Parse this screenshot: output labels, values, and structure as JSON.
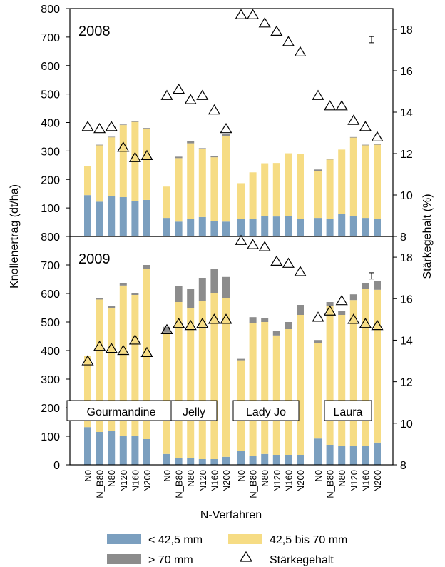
{
  "chart_data": {
    "type": "bar",
    "stacked": true,
    "y_label": "Knollenertrag (dt/ha)",
    "y2_label": "Stärkegehalt (%)",
    "x_label": "N-Verfahren",
    "ylim": [
      0,
      800
    ],
    "y2lim": [
      8,
      19
    ],
    "y_ticks": [
      "0",
      "100",
      "200",
      "300",
      "400",
      "500",
      "600",
      "700",
      "800"
    ],
    "y2_ticks": [
      "8",
      "10",
      "12",
      "14",
      "16",
      "18"
    ],
    "categories": [
      "N0",
      "N_B80",
      "N80",
      "N120",
      "N160",
      "N200"
    ],
    "varieties": [
      "Gourmandine",
      "Jelly",
      "Lady Jo",
      "Laura"
    ],
    "legend": {
      "small": "< 42,5 mm",
      "medium": "42,5 bis 70 mm",
      "large": "> 70 mm",
      "starch": "Stärkegehalt"
    },
    "colors": {
      "small": "#7b9fbf",
      "medium": "#f6dc84",
      "large": "#8c8c8c"
    },
    "panels": [
      {
        "year": "2008",
        "error_bar": {
          "value": 17.5,
          "half": 0.15
        },
        "groups": [
          {
            "small": [
              145,
              122,
              142,
              138,
              125,
              128
            ],
            "medium": [
              102,
              198,
              206,
              253,
              277,
              251
            ],
            "large": [
              0,
              2,
              2,
              2,
              2,
              2
            ],
            "starch": [
              13.3,
              13.2,
              13.3,
              12.3,
              11.8,
              11.9
            ]
          },
          {
            "small": [
              65,
              52,
              62,
              68,
              55,
              52
            ],
            "medium": [
              110,
              223,
              265,
              238,
              223,
              301
            ],
            "large": [
              0,
              5,
              8,
              4,
              3,
              8
            ],
            "starch": [
              14.8,
              15.1,
              14.6,
              14.8,
              14.1,
              13.2
            ]
          },
          {
            "small": [
              62,
              62,
              72,
              70,
              72,
              62
            ],
            "medium": [
              125,
              163,
              185,
              188,
              220,
              228
            ],
            "large": [
              0,
              0,
              0,
              0,
              0,
              0
            ],
            "starch": [
              18.7,
              18.7,
              18.3,
              17.9,
              17.4,
              16.9
            ]
          },
          {
            "small": [
              65,
              62,
              78,
              72,
              65,
              62
            ],
            "medium": [
              165,
              208,
              227,
              275,
              255,
              260
            ],
            "large": [
              5,
              2,
              0,
              2,
              2,
              2
            ],
            "starch": [
              14.8,
              14.3,
              14.3,
              13.6,
              13.3,
              12.8
            ]
          }
        ]
      },
      {
        "year": "2009",
        "error_bar": {
          "value": 17.1,
          "half": 0.15
        },
        "groups": [
          {
            "small": [
              132,
              115,
              118,
              100,
              100,
              90
            ],
            "medium": [
              248,
              464,
              432,
              528,
              495,
              597
            ],
            "large": [
              2,
              5,
              5,
              7,
              7,
              13
            ],
            "starch": [
              13.0,
              13.7,
              13.6,
              13.5,
              14.0,
              13.4
            ]
          },
          {
            "small": [
              38,
              25,
              25,
              20,
              20,
              28
            ],
            "medium": [
              425,
              545,
              525,
              555,
              580,
              555
            ],
            "large": [
              20,
              55,
              65,
              80,
              85,
              75
            ],
            "starch": [
              14.5,
              14.8,
              14.7,
              14.8,
              15.0,
              15.0
            ]
          },
          {
            "small": [
              48,
              32,
              38,
              35,
              35,
              35
            ],
            "medium": [
              318,
              465,
              462,
              418,
              440,
              490
            ],
            "large": [
              5,
              20,
              15,
              15,
              25,
              35
            ],
            "starch": [
              18.8,
              18.6,
              18.5,
              17.8,
              17.7,
              17.3
            ]
          },
          {
            "small": [
              92,
              70,
              65,
              65,
              65,
              78
            ],
            "medium": [
              335,
              485,
              460,
              512,
              550,
              535
            ],
            "large": [
              10,
              15,
              15,
              20,
              20,
              30
            ],
            "starch": [
              15.1,
              15.4,
              15.9,
              15.0,
              14.8,
              14.7
            ]
          }
        ]
      }
    ]
  }
}
